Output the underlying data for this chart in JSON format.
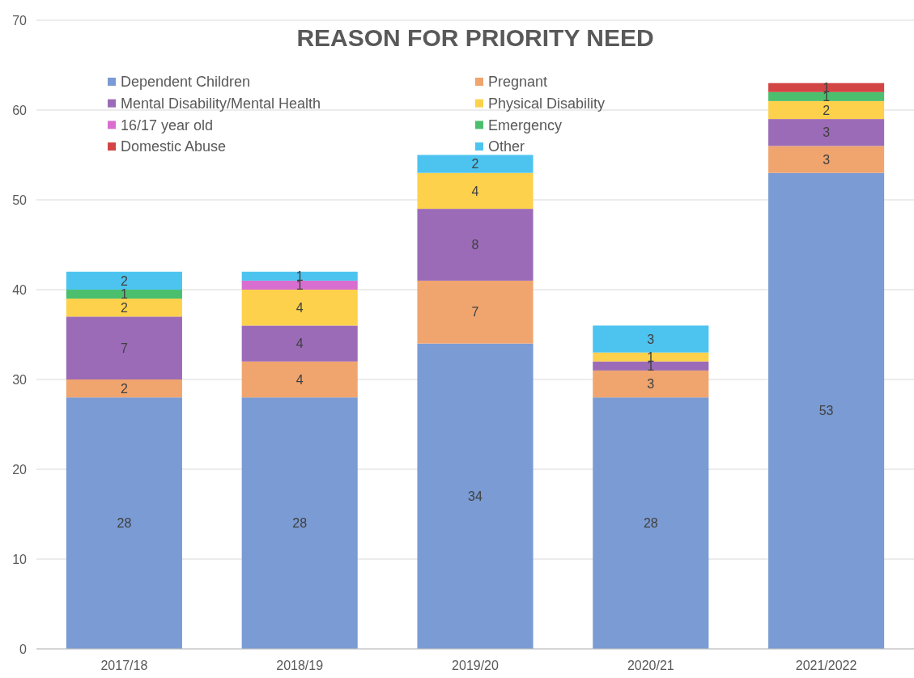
{
  "chart_data": {
    "type": "bar",
    "title": "REASON FOR PRIORITY NEED",
    "stacked": true,
    "categories": [
      "2017/18",
      "2018/19",
      "2019/20",
      "2020/21",
      "2021/2022"
    ],
    "series": [
      {
        "name": "Dependent Children",
        "color": "#7a9bd3",
        "values": [
          28,
          28,
          34,
          28,
          53
        ]
      },
      {
        "name": "Pregnant",
        "color": "#f0a46e",
        "values": [
          2,
          4,
          7,
          3,
          3
        ]
      },
      {
        "name": "Mental Disability/Mental Health",
        "color": "#9b6bb8",
        "values": [
          7,
          4,
          8,
          1,
          3
        ]
      },
      {
        "name": "Physical Disability",
        "color": "#fdd14b",
        "values": [
          2,
          4,
          4,
          1,
          2
        ]
      },
      {
        "name": "16/17 year old",
        "color": "#d86fd0",
        "values": [
          null,
          1,
          null,
          null,
          null
        ]
      },
      {
        "name": "Emergency",
        "color": "#4cbf6e",
        "values": [
          1,
          null,
          null,
          null,
          1
        ]
      },
      {
        "name": "Domestic Abuse",
        "color": "#d34545",
        "values": [
          null,
          null,
          null,
          null,
          1
        ]
      },
      {
        "name": "Other",
        "color": "#4dc4f0",
        "values": [
          2,
          1,
          2,
          3,
          null
        ]
      }
    ],
    "ylim": [
      0,
      70
    ],
    "yticks": [
      0,
      10,
      20,
      30,
      40,
      50,
      60,
      70
    ],
    "grid": "y",
    "legend": "top",
    "data_labels": true
  }
}
